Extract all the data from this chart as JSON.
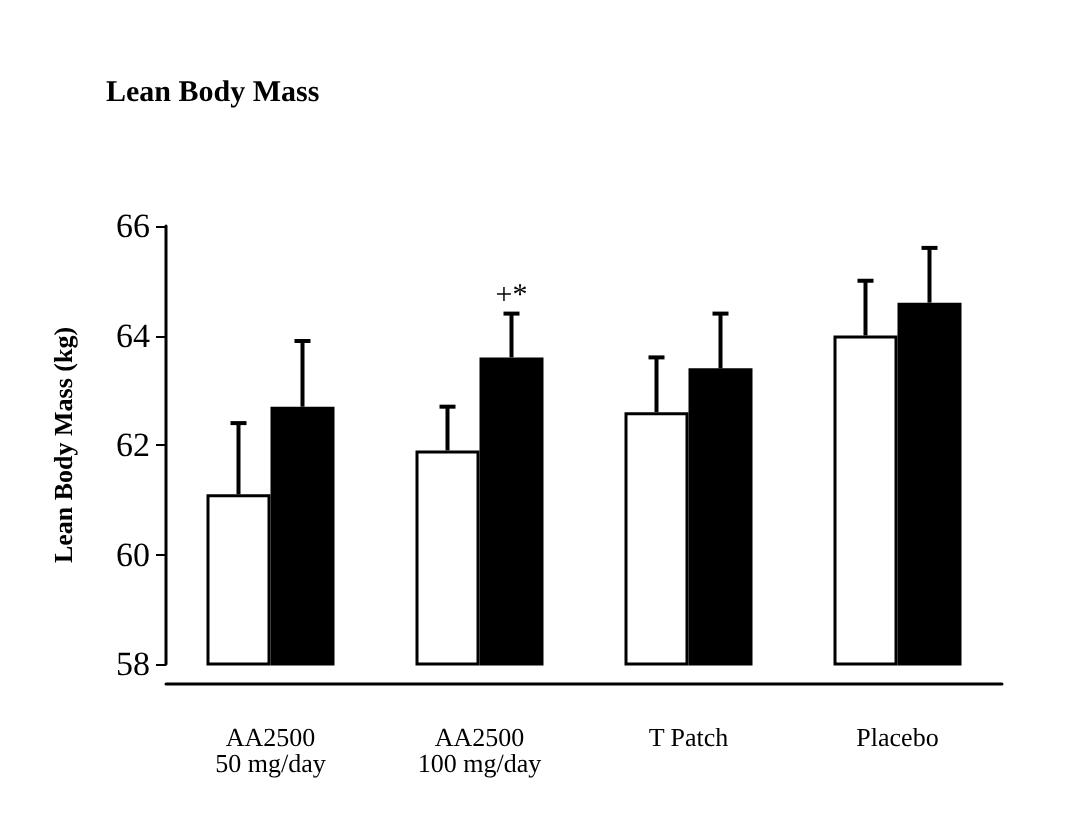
{
  "chart_data": {
    "type": "bar",
    "title": "Lean Body Mass",
    "ylabel": "Lean Body Mass (kg)",
    "categories": [
      "AA2500\n50 mg/day",
      "AA2500\n100 mg/day",
      "T Patch",
      "Placebo"
    ],
    "series": [
      {
        "color": "#ffffff",
        "values": [
          61.1,
          61.9,
          62.6,
          64.0
        ],
        "errors": [
          [
            61.1,
            62.4
          ],
          [
            61.9,
            62.7
          ],
          [
            62.6,
            63.6
          ],
          [
            64.0,
            65.0
          ]
        ]
      },
      {
        "color": "#000000",
        "values": [
          62.7,
          63.6,
          63.4,
          64.6
        ],
        "errors": [
          [
            62.7,
            63.9
          ],
          [
            63.6,
            64.4
          ],
          [
            63.4,
            64.4
          ],
          [
            64.6,
            65.6
          ]
        ]
      }
    ],
    "annotations": [
      "+*"
    ],
    "ylim": [
      58,
      66
    ],
    "yticks": [
      58,
      60,
      62,
      64,
      66
    ],
    "grid": false
  }
}
